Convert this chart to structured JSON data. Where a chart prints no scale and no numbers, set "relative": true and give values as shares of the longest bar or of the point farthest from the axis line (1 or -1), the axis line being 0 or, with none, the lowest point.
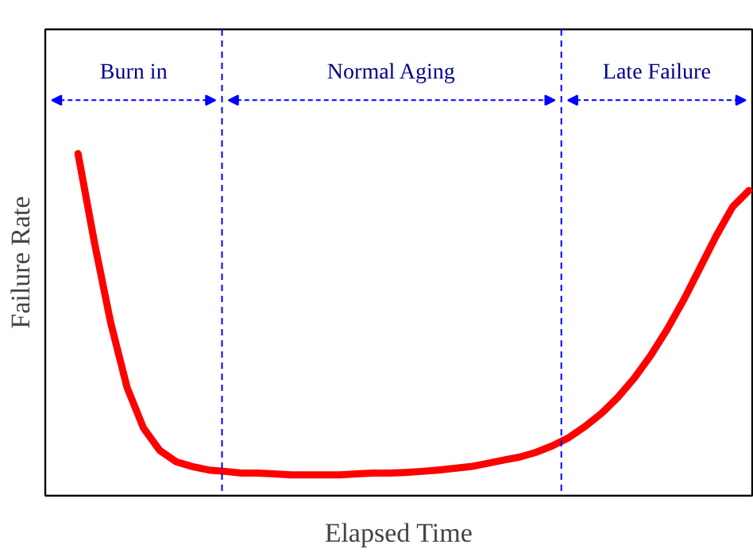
{
  "chart_data": {
    "type": "line",
    "relative": true,
    "xlabel": "Elapsed Time",
    "ylabel": "Failure Rate",
    "categories": [
      null,
      null,
      null,
      null,
      null,
      null,
      null,
      null,
      null,
      null,
      null,
      null,
      null,
      null,
      null,
      null,
      null,
      null,
      null,
      null,
      null,
      null,
      null,
      null,
      null,
      null,
      null,
      null,
      null,
      null,
      null,
      null,
      null,
      null,
      null,
      null,
      null,
      null,
      null,
      null,
      null,
      null
    ],
    "series": [
      {
        "color": "#ff0000",
        "values": [
          1.0,
          0.741,
          0.505,
          0.316,
          0.198,
          0.132,
          0.099,
          0.085,
          0.075,
          0.071,
          0.066,
          0.066,
          0.064,
          0.061,
          0.061,
          0.061,
          0.061,
          0.064,
          0.066,
          0.066,
          0.068,
          0.071,
          0.075,
          0.08,
          0.085,
          0.094,
          0.104,
          0.113,
          0.127,
          0.146,
          0.17,
          0.203,
          0.241,
          0.288,
          0.344,
          0.41,
          0.486,
          0.571,
          0.665,
          0.759,
          0.844,
          0.892
        ]
      }
    ],
    "annotations": [
      "Burn in",
      "Normal Aging",
      "Late Failure"
    ],
    "marker": "none",
    "line_style": "solid"
  }
}
